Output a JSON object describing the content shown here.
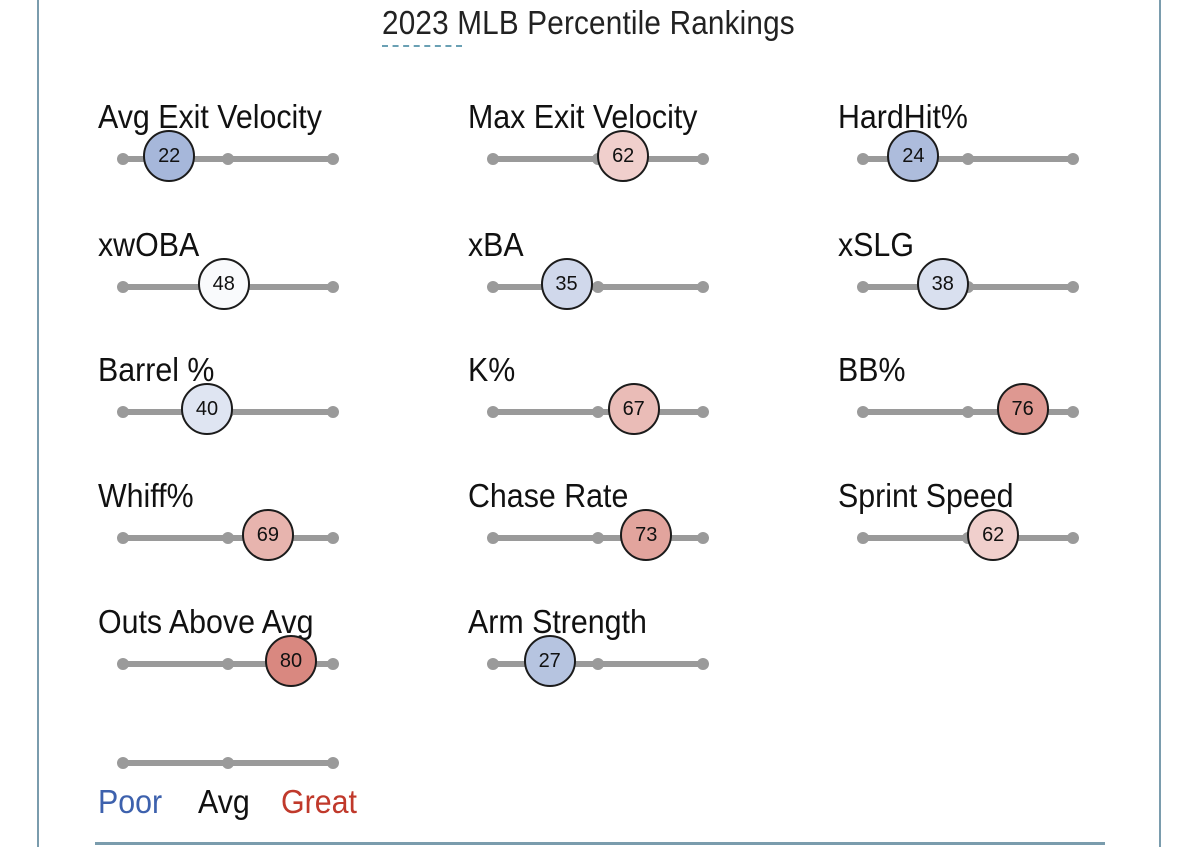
{
  "title": "2023 MLB Percentile Rankings",
  "colors": {
    "poor": "#3d61ad",
    "great": "#c0392b",
    "track": "#9a9a9a",
    "frame": "#7a9cad"
  },
  "legend": {
    "poor": "Poor",
    "avg": "Avg",
    "great": "Great"
  },
  "chart_data": {
    "type": "scatter",
    "title": "2023 MLB Percentile Rankings",
    "scale": [
      0,
      100
    ],
    "tick_marks": [
      0,
      50,
      100
    ],
    "metrics": [
      {
        "label": "Avg Exit Velocity",
        "value": 22
      },
      {
        "label": "Max Exit Velocity",
        "value": 62
      },
      {
        "label": "HardHit%",
        "value": 24
      },
      {
        "label": "xwOBA",
        "value": 48
      },
      {
        "label": "xBA",
        "value": 35
      },
      {
        "label": "xSLG",
        "value": 38
      },
      {
        "label": "Barrel %",
        "value": 40
      },
      {
        "label": "K%",
        "value": 67
      },
      {
        "label": "BB%",
        "value": 76
      },
      {
        "label": "Whiff%",
        "value": 69
      },
      {
        "label": "Chase Rate",
        "value": 73
      },
      {
        "label": "Sprint Speed",
        "value": 62
      },
      {
        "label": "Outs Above Avg",
        "value": 80
      },
      {
        "label": "Arm Strength",
        "value": 27
      }
    ]
  }
}
